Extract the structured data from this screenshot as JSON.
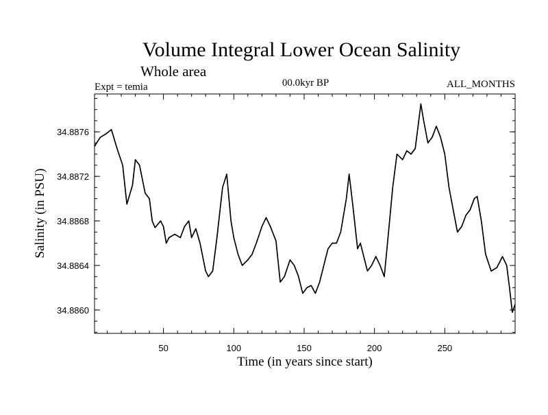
{
  "chart_data": {
    "type": "line",
    "title": "Volume Integral Lower Ocean Salinity",
    "subtitle": "Whole area",
    "experiment_label": "Expt = temia",
    "period_label": "00.0kyr BP",
    "months_label": "ALL_MONTHS",
    "xlabel": "Time (in years since start)",
    "ylabel": "Salinity (in PSU)",
    "xlim": [
      1,
      300
    ],
    "ylim": [
      34.88579,
      34.88794
    ],
    "x_ticks": [
      50,
      100,
      150,
      200,
      250
    ],
    "x_tick_labels": [
      "50",
      "100",
      "150",
      "200",
      "250"
    ],
    "y_ticks": [
      34.886,
      34.8864,
      34.8868,
      34.8872,
      34.8876
    ],
    "y_tick_labels": [
      "34.8860",
      "34.8864",
      "34.8868",
      "34.8872",
      "34.8876"
    ],
    "grid": false,
    "series": [
      {
        "name": "Salinity",
        "color": "#000000",
        "x": [
          1,
          5,
          9,
          13,
          17,
          21,
          24,
          28,
          30,
          33,
          37,
          40,
          42,
          44,
          48,
          50,
          52,
          54,
          58,
          62,
          65,
          68,
          70,
          73,
          76,
          80,
          82,
          85,
          88,
          92,
          95,
          98,
          100,
          103,
          106,
          110,
          113,
          116,
          120,
          123,
          126,
          130,
          133,
          136,
          140,
          143,
          146,
          149,
          152,
          155,
          158,
          161,
          164,
          167,
          170,
          173,
          176,
          180,
          182,
          185,
          188,
          190,
          192,
          195,
          198,
          201,
          204,
          207,
          210,
          213,
          216,
          220,
          223,
          226,
          229,
          231,
          233,
          235,
          238,
          241,
          244,
          247,
          250,
          253,
          256,
          259,
          262,
          265,
          268,
          271,
          273,
          276,
          279,
          283,
          287,
          291,
          294,
          296,
          298,
          300
        ],
        "y": [
          34.88747,
          34.88755,
          34.88758,
          34.88762,
          34.88745,
          34.8873,
          34.88695,
          34.88712,
          34.88735,
          34.8873,
          34.88705,
          34.887,
          34.8868,
          34.88674,
          34.8868,
          34.88675,
          34.8866,
          34.88665,
          34.88668,
          34.88665,
          34.88675,
          34.8868,
          34.88665,
          34.88673,
          34.8866,
          34.88635,
          34.8863,
          34.88635,
          34.88665,
          34.8871,
          34.88722,
          34.8868,
          34.88665,
          34.8865,
          34.8864,
          34.88645,
          34.8865,
          34.8866,
          34.88675,
          34.88683,
          34.88675,
          34.88662,
          34.88625,
          34.8863,
          34.88645,
          34.8864,
          34.8863,
          34.88615,
          34.8862,
          34.88622,
          34.88615,
          34.88625,
          34.8864,
          34.88655,
          34.8866,
          34.8866,
          34.8867,
          34.887,
          34.88722,
          34.8869,
          34.88655,
          34.8866,
          34.8865,
          34.88635,
          34.8864,
          34.88648,
          34.8864,
          34.8863,
          34.8867,
          34.8871,
          34.8874,
          34.88735,
          34.88743,
          34.8874,
          34.88745,
          34.88765,
          34.88785,
          34.8877,
          34.8875,
          34.88755,
          34.88765,
          34.88755,
          34.8874,
          34.8871,
          34.8869,
          34.8867,
          34.88675,
          34.88685,
          34.8869,
          34.887,
          34.88702,
          34.8868,
          34.8865,
          34.88635,
          34.88638,
          34.88648,
          34.8864,
          34.8862,
          34.88598,
          34.88605
        ]
      }
    ]
  }
}
